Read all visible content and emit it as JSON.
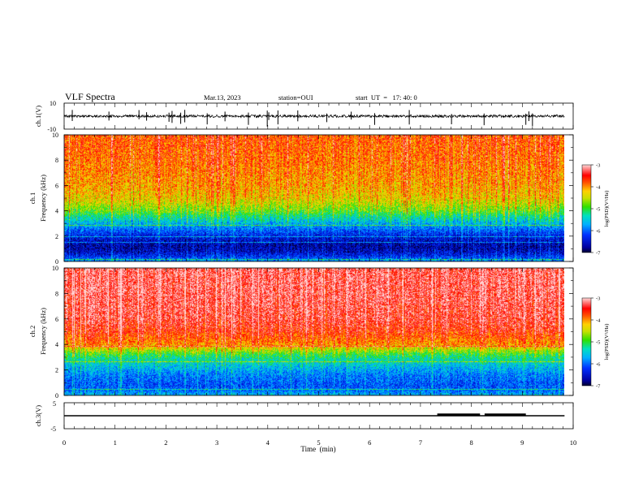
{
  "header": {
    "title": "VLF Spectra",
    "date": "Mar.13, 2023",
    "station": "station=OUI",
    "start": "start  UT  =   17: 40: 0"
  },
  "chart_data": [
    {
      "type": "line",
      "name": "waveform-ch1",
      "ylabel": "ch.1(V)",
      "ylim": [
        -10,
        10
      ],
      "y_tick_labels": [
        "10",
        "-10"
      ],
      "x": [
        0,
        9.83
      ],
      "baseline": 0,
      "noise_amplitude": 1.0,
      "spikes_min": [
        0.16,
        0.88,
        1.47,
        1.62,
        2.06,
        2.12,
        2.29,
        2.37,
        2.81,
        3.16,
        3.62,
        3.99,
        4.02,
        4.2,
        4.59,
        5.16,
        5.64,
        6.1,
        6.78,
        7.61,
        8.25,
        9.07,
        9.13,
        9.2
      ]
    },
    {
      "type": "heatmap",
      "name": "spectrogram-ch1",
      "ylabel": "Frequency (kHz)",
      "channel_label": "ch.1",
      "xlim": [
        0,
        9.83
      ],
      "ylim": [
        0,
        10
      ],
      "y_ticks": [
        "0",
        "2",
        "4",
        "6",
        "8",
        "10"
      ],
      "colorbar": {
        "label": "log(PSD)(V²/Hz)",
        "ticks": [
          "-3",
          "-4",
          "-5",
          "-6",
          "-7"
        ],
        "range": [
          -7,
          -3
        ]
      },
      "profile_freq_khz": [
        0,
        0.4,
        0.8,
        1.2,
        1.6,
        2.0,
        2.4,
        2.8,
        3.2,
        3.6,
        4.0,
        5.0,
        6.0,
        8.0,
        10.0
      ],
      "profile_logpsd": [
        -5.8,
        -6.3,
        -6.6,
        -6.7,
        -6.6,
        -6.4,
        -6.1,
        -5.8,
        -5.5,
        -5.2,
        -4.8,
        -4.3,
        -4.1,
        -3.9,
        -3.8
      ]
    },
    {
      "type": "heatmap",
      "name": "spectrogram-ch2",
      "ylabel": "Frequency (kHz)",
      "channel_label": "ch.2",
      "xlim": [
        0,
        9.83
      ],
      "ylim": [
        0,
        10
      ],
      "y_ticks": [
        "0",
        "2",
        "4",
        "6",
        "8",
        "10"
      ],
      "colorbar": {
        "label": "log(PSD)(V²/Hz)",
        "ticks": [
          "-3",
          "-4",
          "-5",
          "-6",
          "-7"
        ],
        "range": [
          -7,
          -3
        ]
      },
      "profile_freq_khz": [
        0,
        0.4,
        0.8,
        1.2,
        1.6,
        2.0,
        2.4,
        2.8,
        3.2,
        3.6,
        4.0,
        5.0,
        6.0,
        8.0,
        10.0
      ],
      "profile_logpsd": [
        -5.6,
        -6.0,
        -6.1,
        -6.0,
        -5.9,
        -5.7,
        -5.5,
        -5.3,
        -5.0,
        -4.5,
        -4.0,
        -3.6,
        -3.4,
        -3.3,
        -3.3
      ]
    },
    {
      "type": "line",
      "name": "waveform-ch3",
      "ylabel": "ch.3(V)",
      "ylim": [
        -5,
        5
      ],
      "y_tick_labels": [
        "5",
        "-5"
      ],
      "x": [
        0,
        9.83
      ],
      "baseline": 0,
      "pulses": [
        {
          "start": 7.33,
          "end": 8.17,
          "level": 0.5
        },
        {
          "start": 8.26,
          "end": 9.07,
          "level": 0.5
        }
      ]
    }
  ],
  "time_axis": {
    "label": "Time  (min)",
    "ticks": [
      "0",
      "1",
      "2",
      "3",
      "4",
      "5",
      "6",
      "7",
      "8",
      "9",
      "10"
    ],
    "xlim": [
      0,
      10
    ]
  }
}
